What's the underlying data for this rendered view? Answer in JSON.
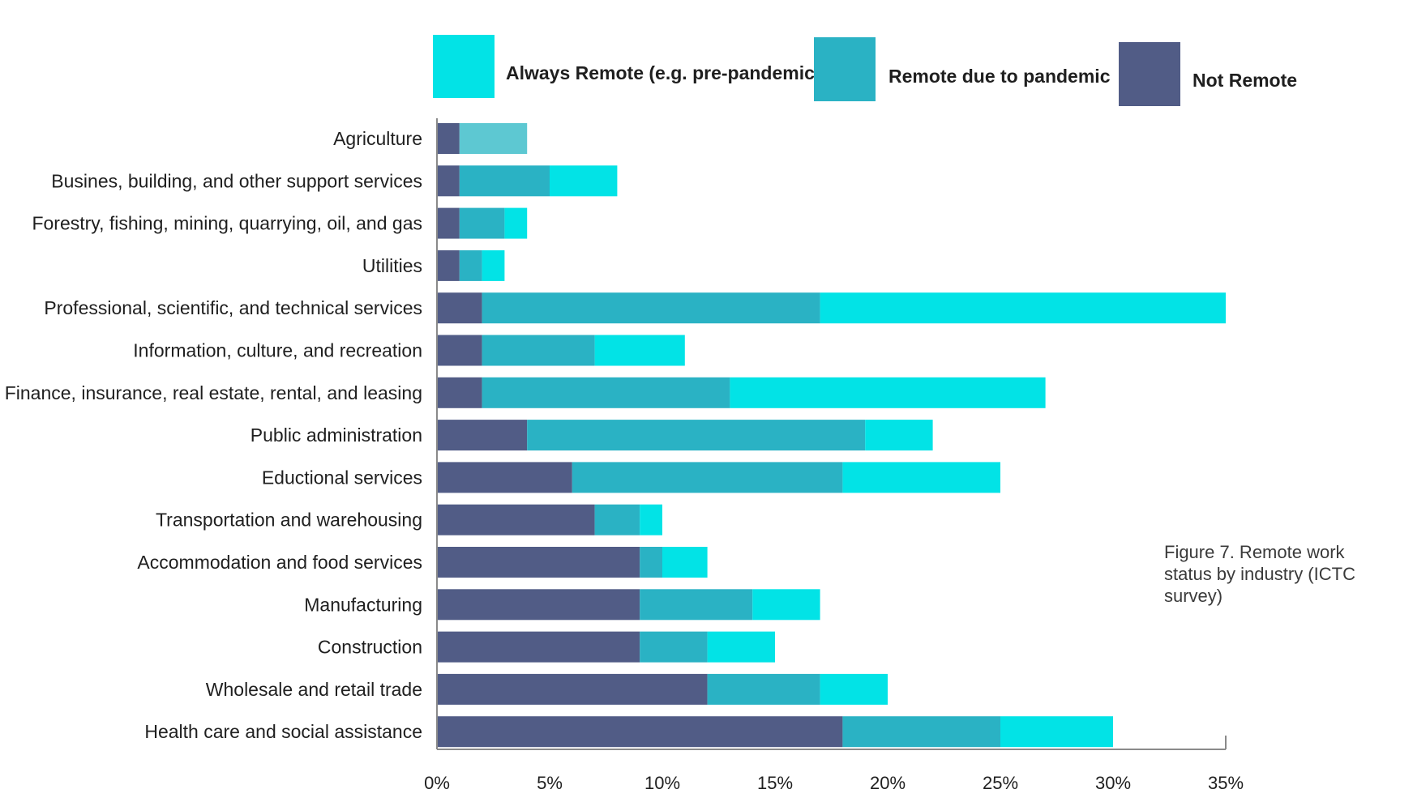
{
  "chart_data": {
    "type": "bar",
    "orientation": "horizontal",
    "stacked": true,
    "categories": [
      "Agriculture",
      "Busines, building, and other support services",
      "Forestry, fishing, mining, quarrying, oil, and gas",
      "Utilities",
      "Professional, scientific, and technical services",
      "Information, culture, and recreation",
      "Finance, insurance, real estate, rental, and leasing",
      "Public administration",
      "Eductional services",
      "Transportation and warehousing",
      "Accommodation and food services",
      "Manufacturing",
      "Construction",
      "Wholesale and retail trade",
      "Health care and social assistance"
    ],
    "series": [
      {
        "name": "Not Remote",
        "color": "#515c86",
        "values": [
          1,
          1,
          1,
          1,
          2,
          2,
          2,
          4,
          6,
          7,
          9,
          9,
          9,
          12,
          18
        ]
      },
      {
        "name": "Remote due to pandemic",
        "color": "#2ab2c4",
        "values": [
          3,
          4,
          2,
          1,
          15,
          5,
          11,
          15,
          12,
          2,
          1,
          5,
          3,
          5,
          7
        ]
      },
      {
        "name": "Always Remote (e.g. pre-pandemic)",
        "color": "#02e3e6",
        "values": [
          0,
          3,
          1,
          1,
          18,
          4,
          14,
          3,
          7,
          1,
          2,
          3,
          3,
          3,
          5
        ]
      }
    ],
    "xlim": [
      0,
      35
    ],
    "xticks": [
      "0%",
      "5%",
      "10%",
      "15%",
      "20%",
      "25%",
      "30%",
      "35%"
    ],
    "legend_order": [
      "Always Remote (e.g. pre-pandemic)",
      "Remote due to pandemic",
      "Not Remote"
    ],
    "legend_position": "top",
    "grid": false,
    "caption": "Figure 7. Remote work status by industry (ICTC survey)"
  }
}
